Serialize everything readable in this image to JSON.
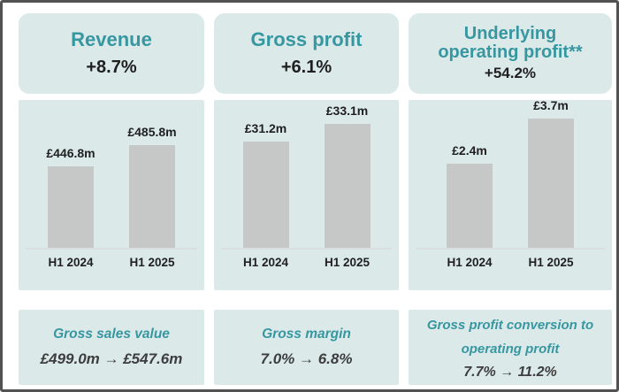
{
  "colors": {
    "accent": "#3697a1",
    "panel_bg": "#dce9e9",
    "bar": "#c6c7c7",
    "dark": "#1f1f1f",
    "value_dark": "#3d3d3d",
    "baseline": "#d9dede",
    "frame_border": "#525252"
  },
  "chart_data": [
    {
      "type": "bar",
      "title": "Revenue",
      "change": "+8.7%",
      "categories": [
        "H1 2024",
        "H1 2025"
      ],
      "values": [
        446.8,
        485.8
      ],
      "value_labels": [
        "£446.8m",
        "£485.8m"
      ],
      "unit": "£m",
      "ylim": [
        300,
        540
      ],
      "grid": false,
      "legend": false
    },
    {
      "type": "bar",
      "title": "Gross profit",
      "change": "+6.1%",
      "categories": [
        "H1 2024",
        "H1 2025"
      ],
      "values": [
        31.2,
        33.1
      ],
      "value_labels": [
        "£31.2m",
        "£33.1m"
      ],
      "unit": "£m",
      "ylim": [
        20,
        34
      ],
      "grid": false,
      "legend": false
    },
    {
      "type": "bar",
      "title": "Underlying operating profit**",
      "change": "+54.2%",
      "categories": [
        "H1 2024",
        "H1 2025"
      ],
      "values": [
        2.4,
        3.7
      ],
      "value_labels": [
        "£2.4m",
        "£3.7m"
      ],
      "unit": "£m",
      "ylim": [
        0,
        3.8
      ],
      "grid": false,
      "legend": false
    }
  ],
  "panels": [
    {
      "footer_title": "Gross sales value",
      "footer_value": "£499.0m → £547.6m"
    },
    {
      "footer_title": "Gross margin",
      "footer_value": "7.0% → 6.8%"
    },
    {
      "footer_title": "Gross profit conversion to operating profit",
      "footer_value": "7.7% → 11.2%"
    }
  ]
}
